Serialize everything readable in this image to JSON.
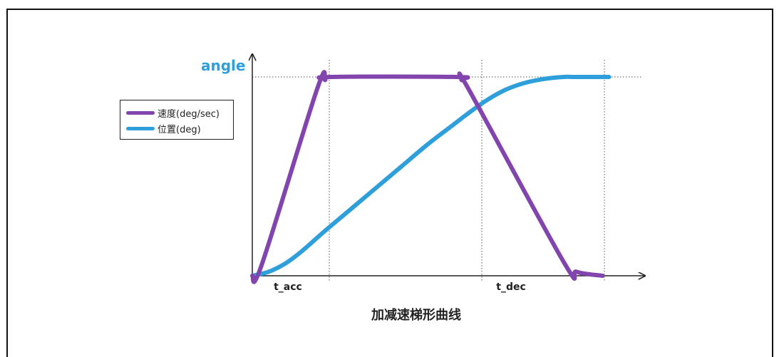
{
  "chart_data": {
    "type": "line",
    "title": "加减速梯形曲线",
    "ylabel": "angle",
    "xlabel": "",
    "x_ticks": [
      "t_acc",
      "t_dec"
    ],
    "x_tick_values": [
      0.22,
      0.66
    ],
    "xlim": [
      0,
      1
    ],
    "ylim": [
      0,
      1
    ],
    "grid": false,
    "legend_position": "left",
    "series": [
      {
        "name": "速度(deg/sec)",
        "color": "#8245AE",
        "x": [
          0.0,
          0.03,
          0.2,
          0.225,
          0.24,
          0.63,
          0.645,
          0.67,
          0.96,
          1.0,
          1.08
        ],
        "y": [
          0.0,
          0.06,
          0.94,
          0.985,
          1.0,
          1.0,
          0.985,
          0.93,
          0.07,
          0.02,
          0.0
        ]
      },
      {
        "name": "位置(deg)",
        "color": "#2E9FDB",
        "x": [
          0.0,
          0.05,
          0.1,
          0.15,
          0.22,
          0.3,
          0.38,
          0.46,
          0.54,
          0.62,
          0.66,
          0.72,
          0.78,
          0.84,
          0.9,
          0.96,
          1.0,
          1.1
        ],
        "y": [
          0.0,
          0.02,
          0.06,
          0.12,
          0.22,
          0.33,
          0.44,
          0.55,
          0.66,
          0.76,
          0.81,
          0.88,
          0.935,
          0.97,
          0.99,
          1.0,
          1.0,
          1.0
        ]
      }
    ]
  }
}
